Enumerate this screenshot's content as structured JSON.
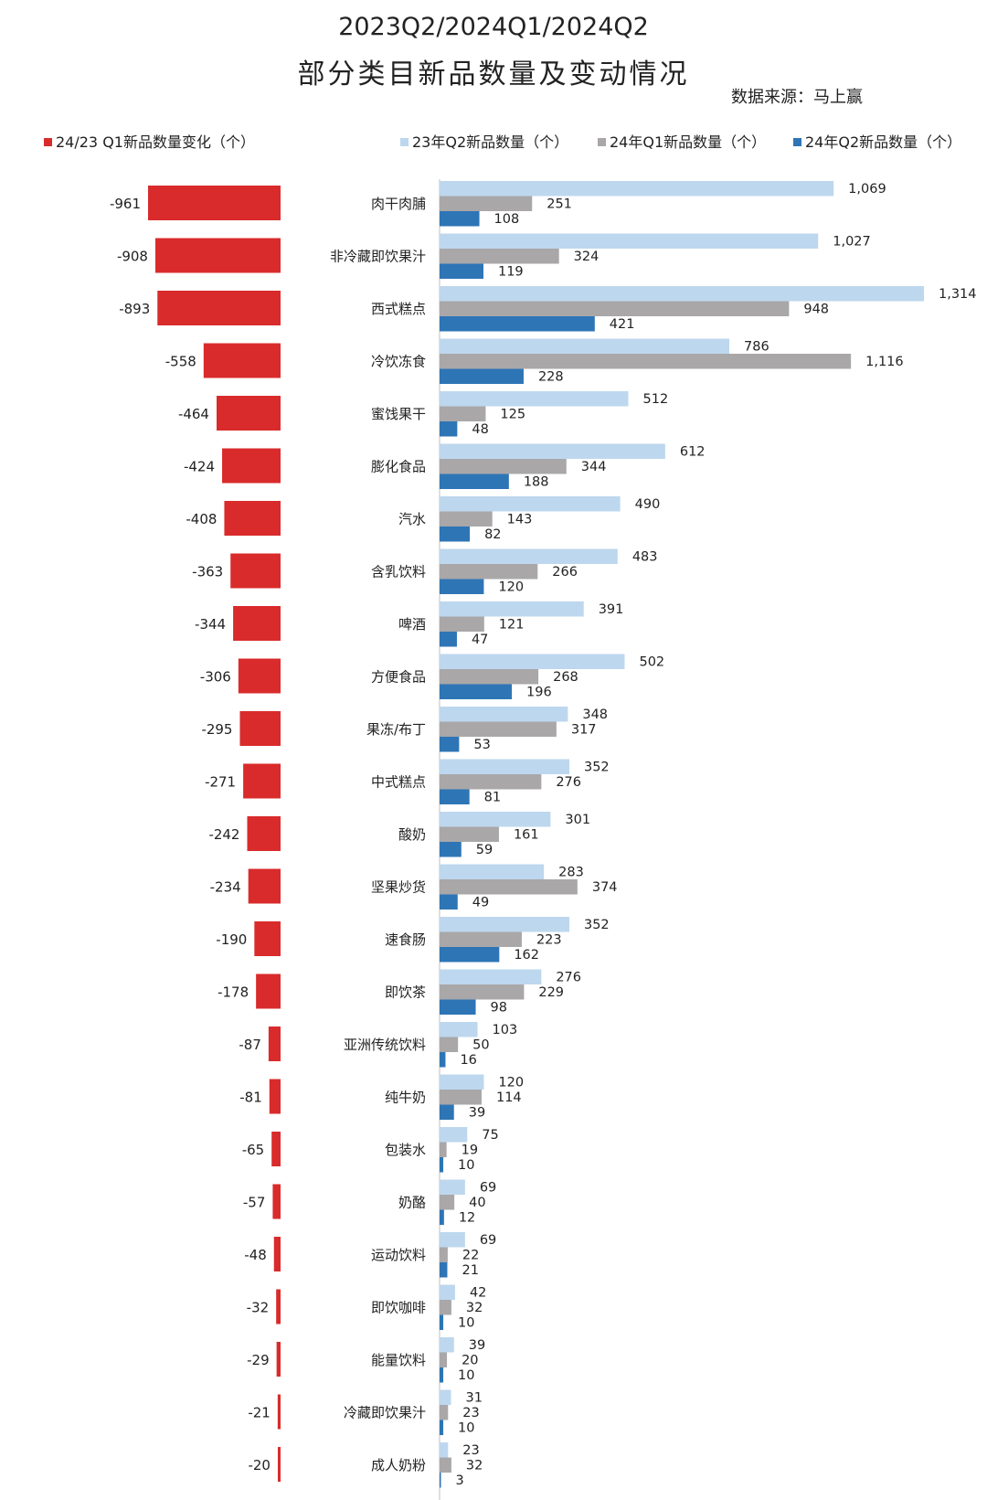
{
  "title_line1": "2023Q2/2024Q1/2024Q2",
  "title_line2": "部分类目新品数量及变动情况",
  "source": "数据来源：马上赢",
  "colors": {
    "change": "#d92b2b",
    "q2_2023": "#bdd7ee",
    "q1_2024": "#a9a7a8",
    "q2_2024": "#2e75b6"
  },
  "legend": {
    "change": "24/23 Q1新品数量变化（个）",
    "q2_2023": "23年Q2新品数量（个）",
    "q1_2024": "24年Q1新品数量（个）",
    "q2_2024": "24年Q2新品数量（个）"
  },
  "chart_data": [
    {
      "type": "bar",
      "orientation": "horizontal",
      "categories": [
        "肉干肉脯",
        "非冷藏即饮果汁",
        "西式糕点",
        "冷饮冻食",
        "蜜饯果干",
        "膨化食品",
        "汽水",
        "含乳饮料",
        "啤酒",
        "方便食品",
        "果冻/布丁",
        "中式糕点",
        "酸奶",
        "坚果炒货",
        "速食肠",
        "即饮茶",
        "亚洲传统饮料",
        "纯牛奶",
        "包装水",
        "奶酪",
        "运动饮料",
        "即饮咖啡",
        "能量饮料",
        "冷藏即饮果汁",
        "成人奶粉"
      ],
      "series": [
        {
          "name": "24/23 Q1新品数量变化（个）",
          "values": [
            -961,
            -908,
            -893,
            -558,
            -464,
            -424,
            -408,
            -363,
            -344,
            -306,
            -295,
            -271,
            -242,
            -234,
            -190,
            -178,
            -87,
            -81,
            -65,
            -57,
            -48,
            -32,
            -29,
            -21,
            -20
          ]
        }
      ],
      "data_labels": [
        "-961",
        "-908",
        "-893",
        "-558",
        "-464",
        "-424",
        "-408",
        "-363",
        "-344",
        "-306",
        "-295",
        "-271",
        "-242",
        "-234",
        "-190",
        "-178",
        "-87",
        "-81",
        "-65",
        "-57",
        "-48",
        "-32",
        "-29",
        "-21",
        "-20"
      ]
    },
    {
      "type": "bar",
      "orientation": "horizontal",
      "categories": [
        "肉干肉脯",
        "非冷藏即饮果汁",
        "西式糕点",
        "冷饮冻食",
        "蜜饯果干",
        "膨化食品",
        "汽水",
        "含乳饮料",
        "啤酒",
        "方便食品",
        "果冻/布丁",
        "中式糕点",
        "酸奶",
        "坚果炒货",
        "速食肠",
        "即饮茶",
        "亚洲传统饮料",
        "纯牛奶",
        "包装水",
        "奶酪",
        "运动饮料",
        "即饮咖啡",
        "能量饮料",
        "冷藏即饮果汁",
        "成人奶粉"
      ],
      "series": [
        {
          "name": "23年Q2新品数量（个）",
          "values": [
            1069,
            1027,
            1314,
            786,
            512,
            612,
            490,
            483,
            391,
            502,
            348,
            352,
            301,
            283,
            352,
            276,
            103,
            120,
            75,
            69,
            69,
            42,
            39,
            31,
            23
          ]
        },
        {
          "name": "24年Q1新品数量（个）",
          "values": [
            251,
            324,
            948,
            1116,
            125,
            344,
            143,
            266,
            121,
            268,
            317,
            276,
            161,
            374,
            223,
            229,
            50,
            114,
            19,
            40,
            22,
            32,
            20,
            23,
            32
          ]
        },
        {
          "name": "24年Q2新品数量（个）",
          "values": [
            108,
            119,
            421,
            228,
            48,
            188,
            82,
            120,
            47,
            196,
            53,
            81,
            59,
            49,
            162,
            98,
            16,
            39,
            10,
            12,
            21,
            10,
            10,
            10,
            3
          ]
        }
      ],
      "data_labels": {
        "23年Q2新品数量（个）": [
          "1,069",
          "1,027",
          "1,314",
          "786",
          "512",
          "612",
          "490",
          "483",
          "391",
          "502",
          "348",
          "352",
          "301",
          "283",
          "352",
          "276",
          "103",
          "120",
          "75",
          "69",
          "69",
          "42",
          "39",
          "31",
          "23"
        ],
        "24年Q1新品数量（个）": [
          "251",
          "324",
          "948",
          "1,116",
          "125",
          "344",
          "143",
          "266",
          "121",
          "268",
          "317",
          "276",
          "161",
          "374",
          "223",
          "229",
          "50",
          "114",
          "19",
          "40",
          "22",
          "32",
          "20",
          "23",
          "32"
        ],
        "24年Q2新品数量（个）": [
          "108",
          "119",
          "421",
          "228",
          "48",
          "188",
          "82",
          "120",
          "47",
          "196",
          "53",
          "81",
          "59",
          "49",
          "162",
          "98",
          "16",
          "39",
          "10",
          "12",
          "21",
          "10",
          "10",
          "10",
          "3"
        ]
      }
    }
  ]
}
